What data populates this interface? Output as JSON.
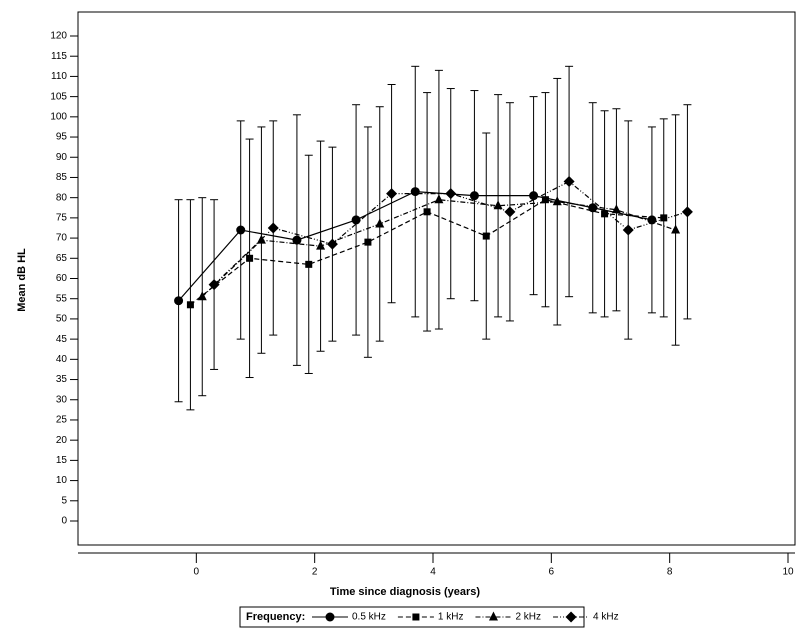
{
  "chart_data": {
    "type": "line",
    "xlabel": "Time since diagnosis (years)",
    "ylabel": "Mean dB HL",
    "legend_title": "Frequency:",
    "xlim": [
      -2,
      10
    ],
    "xticks": [
      0,
      2,
      4,
      6,
      8,
      10
    ],
    "ylim": [
      0,
      120
    ],
    "yticks": [
      0,
      5,
      10,
      15,
      20,
      25,
      30,
      35,
      40,
      45,
      50,
      55,
      60,
      65,
      70,
      75,
      80,
      85,
      90,
      95,
      100,
      105,
      110,
      115,
      120
    ],
    "series": [
      {
        "name": "0.5 kHz",
        "color": "#000000",
        "marker": "circle",
        "dash": "solid",
        "x": [
          -0.3,
          0.75,
          1.7,
          2.7,
          3.7,
          4.7,
          5.7,
          6.7,
          7.7
        ],
        "values": [
          54.5,
          72,
          69.5,
          74.5,
          81.5,
          80.5,
          80.5,
          77.5,
          74.5
        ],
        "errors": [
          25,
          27,
          31,
          28.5,
          31,
          26,
          24.5,
          26,
          23
        ]
      },
      {
        "name": "1 kHz",
        "color": "#000000",
        "marker": "square",
        "dash": "dashed",
        "x": [
          -0.1,
          0.9,
          1.9,
          2.9,
          3.9,
          4.9,
          5.9,
          6.9,
          7.9
        ],
        "values": [
          53.5,
          65,
          63.5,
          69,
          76.5,
          70.5,
          79.5,
          76,
          75
        ],
        "errors": [
          26,
          29.5,
          27,
          28.5,
          29.5,
          25.5,
          26.5,
          25.5,
          24.5
        ]
      },
      {
        "name": "2 kHz",
        "color": "#000000",
        "marker": "triangle",
        "dash": "dash-dot",
        "x": [
          0.1,
          1.1,
          2.1,
          3.1,
          4.1,
          5.1,
          6.1,
          7.1,
          8.1
        ],
        "values": [
          55.5,
          69.5,
          68,
          73.5,
          79.5,
          78,
          79,
          77,
          72
        ],
        "errors": [
          24.5,
          28,
          26,
          29,
          32,
          27.5,
          30.5,
          25,
          28.5
        ]
      },
      {
        "name": "4 kHz",
        "color": "#000000",
        "marker": "diamond",
        "dash": "dash-dot-dot",
        "x": [
          0.3,
          1.3,
          2.3,
          3.3,
          4.3,
          5.3,
          6.3,
          7.3,
          8.3
        ],
        "values": [
          58.5,
          72.5,
          68.5,
          81,
          81,
          76.5,
          84,
          72,
          76.5
        ],
        "errors": [
          21,
          26.5,
          24,
          27,
          26,
          27,
          28.5,
          27,
          26.5
        ]
      }
    ]
  }
}
